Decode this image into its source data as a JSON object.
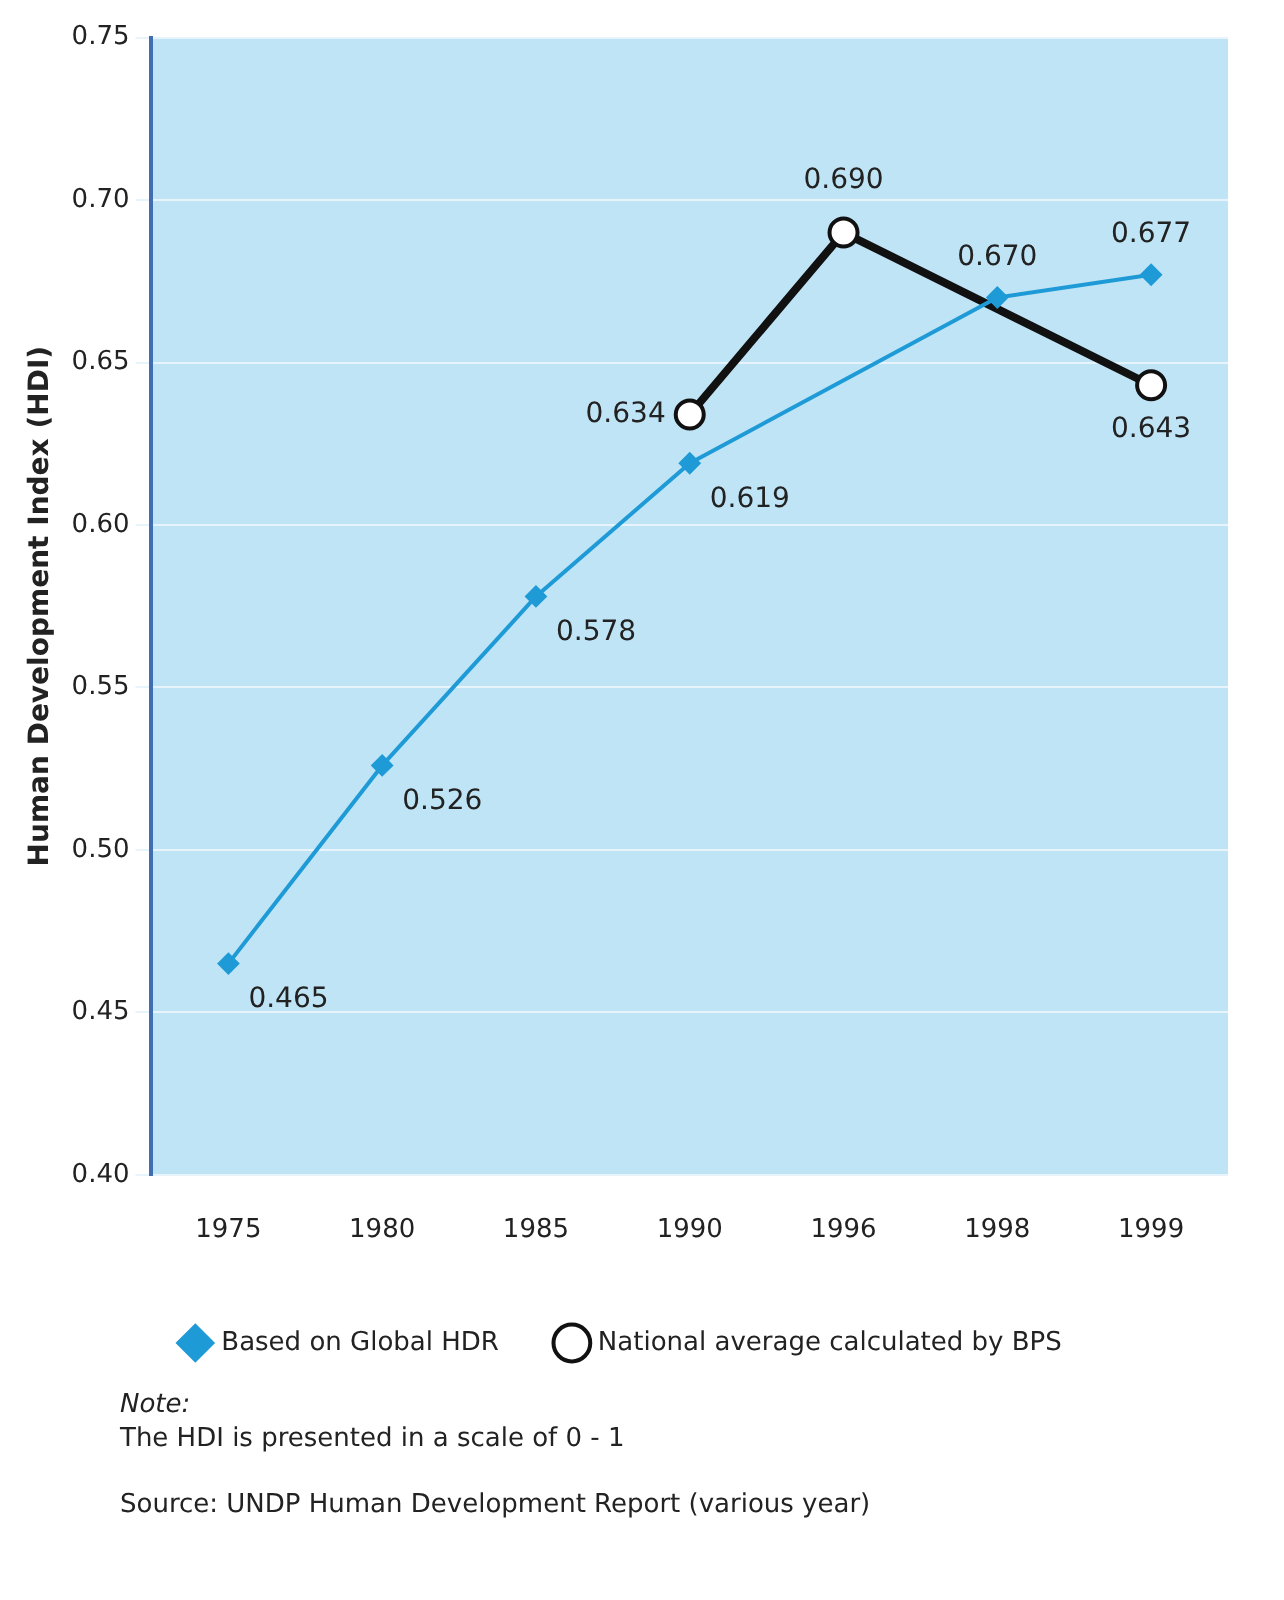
{
  "chart_data": {
    "type": "line",
    "ylabel": "Human Development Index (HDI)",
    "categories": [
      "1975",
      "1980",
      "1985",
      "1990",
      "1996",
      "1998",
      "1999"
    ],
    "series": [
      {
        "name": "Based on Global HDR",
        "color": "#1e9bd7",
        "marker": "diamond",
        "values": [
          0.465,
          0.526,
          0.578,
          0.619,
          null,
          0.67,
          0.677
        ],
        "value_labels": [
          "0.465",
          "0.526",
          "0.578",
          "0.619",
          null,
          "0.670",
          "0.677"
        ]
      },
      {
        "name": "National average calculated by BPS",
        "color": "#111111",
        "marker": "circle",
        "values": [
          null,
          null,
          null,
          0.634,
          0.69,
          null,
          0.643
        ],
        "value_labels": [
          null,
          null,
          null,
          "0.634",
          "0.690",
          null,
          "0.643"
        ]
      }
    ],
    "ylim": [
      0.4,
      0.75
    ],
    "yticks": [
      {
        "value": 0.4,
        "label": "0.40"
      },
      {
        "value": 0.45,
        "label": "0.45"
      },
      {
        "value": 0.5,
        "label": "0.50"
      },
      {
        "value": 0.55,
        "label": "0.55"
      },
      {
        "value": 0.6,
        "label": "0.60"
      },
      {
        "value": 0.65,
        "label": "0.65"
      },
      {
        "value": 0.7,
        "label": "0.70"
      },
      {
        "value": 0.75,
        "label": "0.75"
      }
    ],
    "grid": "y",
    "legend": "bottom",
    "line_style": "solid",
    "annotations": [
      "Note:",
      "The HDI is presented in a scale of 0 - 1",
      "Source: UNDP Human Development Report (various year)"
    ]
  }
}
